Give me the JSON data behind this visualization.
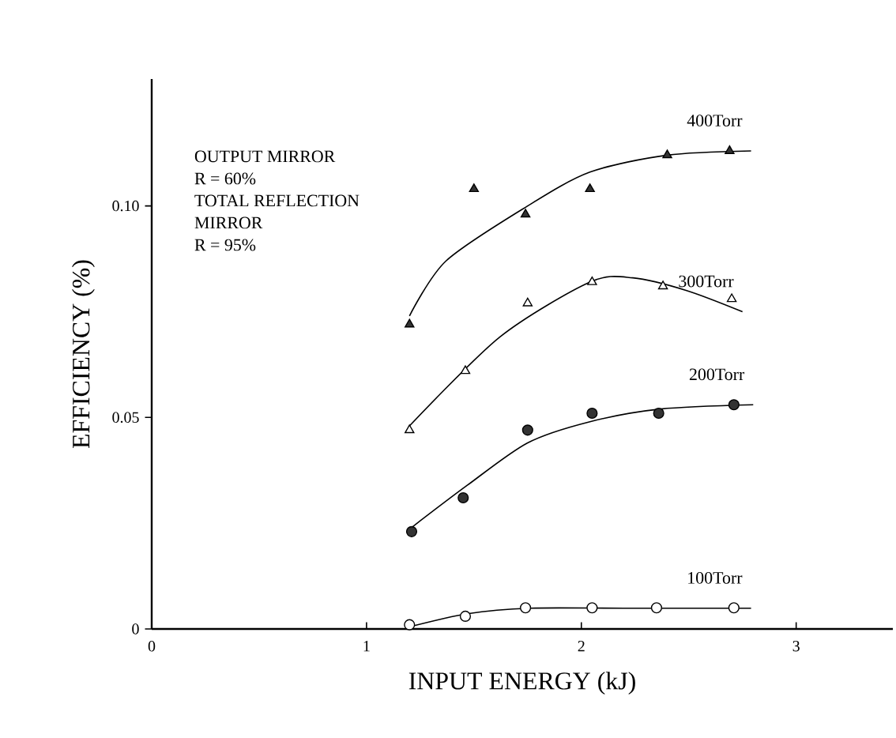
{
  "chart_data": {
    "type": "scatter",
    "xlabel": "INPUT ENERGY (kJ)",
    "ylabel": "EFFICIENCY (%)",
    "xlim": [
      0,
      3.45
    ],
    "ylim": [
      0,
      0.13
    ],
    "xticks": [
      0,
      1,
      2,
      3
    ],
    "yticks": [
      0,
      0.05,
      {
        "value": 0.1,
        "label": "0.10"
      }
    ],
    "grid": false,
    "legend": false,
    "annotations": [
      "OUTPUT MIRROR",
      "R = 60%",
      "TOTAL REFLECTION",
      "MIRROR",
      "R = 95%"
    ],
    "series": [
      {
        "color": "#333333",
        "marker": "triangle",
        "x": [
          1.2,
          1.5,
          1.74,
          2.04,
          2.4,
          2.69
        ],
        "values": [
          0.072,
          0.104,
          0.098,
          0.104,
          0.112,
          0.113
        ]
      },
      {
        "name": "400Torr",
        "type": "line",
        "marker": "none",
        "color": "#000000",
        "x": [
          1.2,
          1.37,
          1.75,
          2.04,
          2.4,
          2.79
        ],
        "values": [
          0.074,
          0.087,
          0.1,
          0.108,
          0.112,
          0.113
        ]
      },
      {
        "color": "#ffffff",
        "marker": "triangle",
        "x": [
          1.2,
          1.46,
          1.75,
          2.05,
          2.38,
          2.7
        ],
        "values": [
          0.047,
          0.061,
          0.077,
          0.082,
          0.081,
          0.078
        ]
      },
      {
        "name": "300Torr",
        "type": "line",
        "marker": "none",
        "color": "#000000",
        "x": [
          1.2,
          1.62,
          2.04,
          2.24,
          2.49,
          2.75
        ],
        "values": [
          0.048,
          0.069,
          0.082,
          0.083,
          0.08,
          0.075
        ]
      },
      {
        "color": "#333333",
        "marker": "circle",
        "x": [
          1.21,
          1.45,
          1.75,
          2.05,
          2.36,
          2.71
        ],
        "values": [
          0.023,
          0.031,
          0.047,
          0.051,
          0.051,
          0.053
        ]
      },
      {
        "name": "200Torr",
        "type": "line",
        "marker": "none",
        "color": "#000000",
        "x": [
          1.21,
          1.47,
          1.75,
          2.04,
          2.37,
          2.8
        ],
        "values": [
          0.024,
          0.034,
          0.044,
          0.049,
          0.052,
          0.053
        ]
      },
      {
        "color": "#ffffff",
        "marker": "circle",
        "x": [
          1.2,
          1.46,
          1.74,
          2.05,
          2.35,
          2.71
        ],
        "values": [
          0.001,
          0.003,
          0.005,
          0.005,
          0.005,
          0.005
        ]
      },
      {
        "name": "100Torr",
        "type": "line",
        "marker": "none",
        "color": "#000000",
        "x": [
          1.2,
          1.47,
          1.76,
          2.2,
          2.79
        ],
        "values": [
          0.0005,
          0.0036,
          0.0049,
          0.0049,
          0.0049
        ]
      }
    ]
  }
}
